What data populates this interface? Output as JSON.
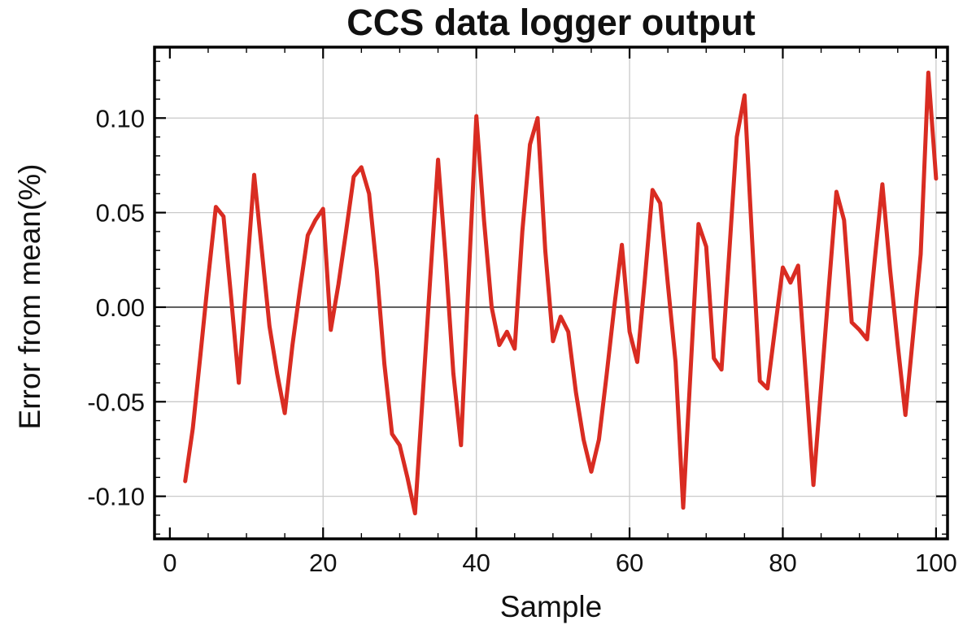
{
  "title": "CCS data logger output",
  "chart_data": {
    "type": "line",
    "title": "CCS data logger output",
    "xlabel": "Sample",
    "ylabel": "Error from mean(%)",
    "xlim": [
      -2,
      101.5
    ],
    "ylim": [
      -0.1225,
      0.1375
    ],
    "x_ticks": [
      0,
      20,
      40,
      60,
      80,
      100
    ],
    "y_ticks": [
      0.1,
      0.05,
      0.0,
      -0.05,
      -0.1
    ],
    "y_tick_labels": [
      "0.10",
      "0.05",
      "0.00",
      "-0.05",
      "-0.10"
    ],
    "x_minor_step": 5,
    "y_minor_step": 0.01,
    "grid": true,
    "legend": "none",
    "line_color": "#d92c22",
    "grid_color": "#c9c9c9",
    "zero_axis_color": "#3a3a3a",
    "frame_color": "#000000",
    "x": [
      2,
      3,
      4,
      5,
      6,
      7,
      8,
      9,
      10,
      11,
      12,
      13,
      14,
      15,
      16,
      17,
      18,
      19,
      20,
      21,
      22,
      23,
      24,
      25,
      26,
      27,
      28,
      29,
      30,
      31,
      32,
      33,
      34,
      35,
      36,
      37,
      38,
      39,
      40,
      41,
      42,
      43,
      44,
      45,
      46,
      47,
      48,
      49,
      50,
      51,
      52,
      53,
      54,
      55,
      56,
      57,
      58,
      59,
      60,
      61,
      62,
      63,
      64,
      65,
      66,
      67,
      68,
      69,
      70,
      71,
      72,
      73,
      74,
      75,
      76,
      77,
      78,
      79,
      80,
      81,
      82,
      83,
      84,
      85,
      86,
      87,
      88,
      89,
      90,
      91,
      92,
      93,
      94,
      95,
      96,
      97,
      98,
      99,
      100
    ],
    "values": [
      -0.092,
      -0.064,
      -0.025,
      0.015,
      0.053,
      0.048,
      0.005,
      -0.04,
      0.015,
      0.07,
      0.03,
      -0.01,
      -0.035,
      -0.056,
      -0.02,
      0.01,
      0.038,
      0.046,
      0.052,
      -0.012,
      0.012,
      0.04,
      0.069,
      0.074,
      0.06,
      0.02,
      -0.03,
      -0.067,
      -0.073,
      -0.09,
      -0.109,
      -0.047,
      0.016,
      0.078,
      0.025,
      -0.035,
      -0.073,
      0.015,
      0.101,
      0.046,
      0.0,
      -0.02,
      -0.013,
      -0.022,
      0.04,
      0.086,
      0.1,
      0.03,
      -0.018,
      -0.005,
      -0.013,
      -0.045,
      -0.07,
      -0.087,
      -0.07,
      -0.036,
      0.0,
      0.033,
      -0.013,
      -0.029,
      0.015,
      0.062,
      0.055,
      0.012,
      -0.029,
      -0.106,
      -0.031,
      0.044,
      0.032,
      -0.027,
      -0.033,
      0.028,
      0.09,
      0.112,
      0.035,
      -0.039,
      -0.043,
      -0.011,
      0.021,
      0.013,
      0.022,
      -0.036,
      -0.094,
      -0.042,
      0.01,
      0.061,
      0.046,
      -0.008,
      -0.012,
      -0.017,
      0.025,
      0.065,
      0.02,
      -0.02,
      -0.057,
      -0.015,
      0.028,
      0.124,
      0.068
    ]
  }
}
